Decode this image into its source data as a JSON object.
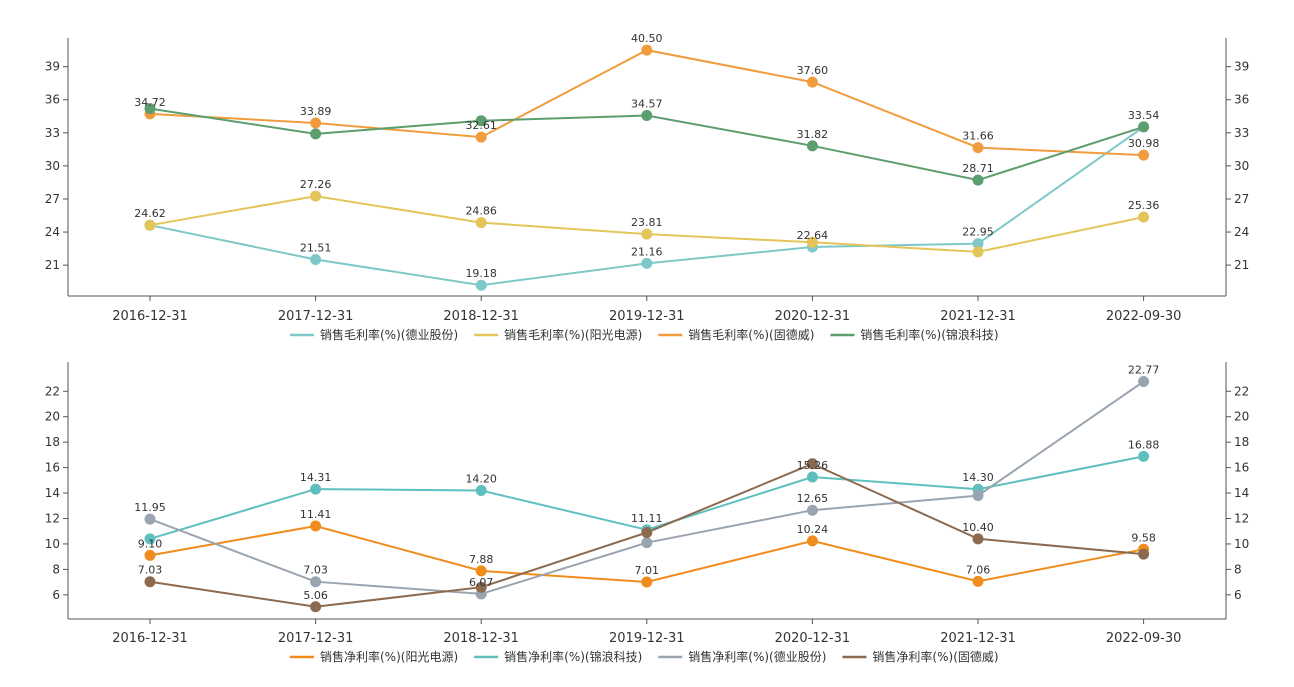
{
  "chart_data": [
    {
      "type": "line",
      "categories": [
        "2016-12-31",
        "2017-12-31",
        "2018-12-31",
        "2019-12-31",
        "2020-12-31",
        "2021-12-31",
        "2022-09-30"
      ],
      "y_ticks": [
        21,
        24,
        27,
        30,
        33,
        36,
        39
      ],
      "ylim": [
        18.2,
        41.6
      ],
      "series": [
        {
          "name": "销售毛利率(%)(德业股份)",
          "color": "#7ec8c8",
          "values": [
            24.62,
            21.51,
            19.18,
            21.16,
            22.64,
            22.95,
            33.54
          ],
          "labels": [
            "",
            "21.51",
            "19.18",
            "21.16",
            "22.64",
            "22.95",
            ""
          ]
        },
        {
          "name": "销售毛利率(%)(阳光电源)",
          "color": "#e3c55a",
          "values": [
            24.62,
            27.26,
            24.86,
            23.81,
            23.07,
            22.2,
            25.36
          ],
          "labels": [
            "24.62",
            "27.26",
            "24.86",
            "23.81",
            "",
            "",
            "25.36"
          ]
        },
        {
          "name": "销售毛利率(%)(固德威)",
          "color": "#f09c3e",
          "values": [
            34.72,
            33.89,
            32.61,
            40.5,
            37.6,
            31.66,
            30.98
          ],
          "labels": [
            "34.72",
            "33.89",
            "32.61",
            "40.50",
            "37.60",
            "31.66",
            "30.98"
          ]
        },
        {
          "name": "销售毛利率(%)(锦浪科技)",
          "color": "#5c9e6e",
          "values": [
            35.2,
            32.9,
            34.1,
            34.57,
            31.82,
            28.71,
            33.54
          ],
          "labels": [
            "",
            "",
            "",
            "34.57",
            "31.82",
            "28.71",
            "33.54"
          ]
        }
      ]
    },
    {
      "type": "line",
      "categories": [
        "2016-12-31",
        "2017-12-31",
        "2018-12-31",
        "2019-12-31",
        "2020-12-31",
        "2021-12-31",
        "2022-09-30"
      ],
      "y_ticks": [
        6,
        8,
        10,
        12,
        14,
        16,
        18,
        20,
        22
      ],
      "ylim": [
        4.1,
        24.3
      ],
      "series": [
        {
          "name": "销售净利率(%)(阳光电源)",
          "color": "#f08c1e",
          "values": [
            9.1,
            11.41,
            7.88,
            7.01,
            10.24,
            7.06,
            9.58
          ],
          "labels": [
            "9.10",
            "11.41",
            "7.88",
            "7.01",
            "10.24",
            "7.06",
            "9.58"
          ]
        },
        {
          "name": "销售净利率(%)(锦浪科技)",
          "color": "#5fbfbf",
          "values": [
            10.4,
            14.31,
            14.2,
            11.11,
            15.26,
            14.3,
            16.88
          ],
          "labels": [
            "",
            "14.31",
            "14.20",
            "11.11",
            "15.26",
            "14.30",
            "16.88"
          ]
        },
        {
          "name": "销售净利率(%)(德业股份)",
          "color": "#9aa4b1",
          "values": [
            11.95,
            7.03,
            6.07,
            10.1,
            12.65,
            13.8,
            22.77
          ],
          "labels": [
            "11.95",
            "7.03",
            "6.07",
            "",
            "12.65",
            "",
            "22.77"
          ]
        },
        {
          "name": "销售净利率(%)(固德威)",
          "color": "#8c6a4f",
          "values": [
            7.03,
            5.06,
            6.6,
            10.9,
            16.3,
            10.4,
            9.2
          ],
          "labels": [
            "7.03",
            "5.06",
            "",
            "",
            "",
            "10.40",
            ""
          ]
        }
      ]
    }
  ]
}
